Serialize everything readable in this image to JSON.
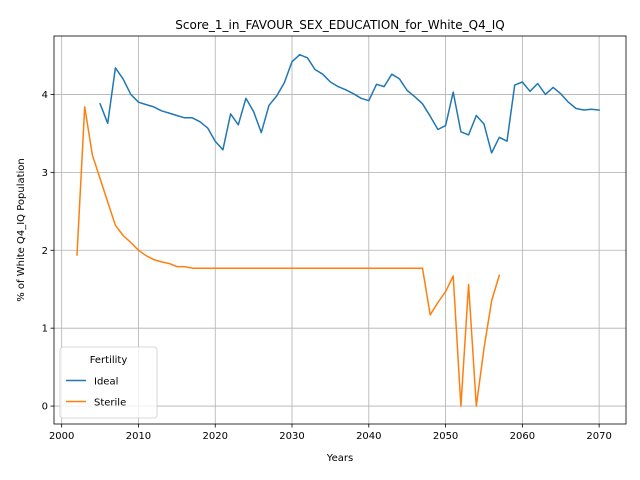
{
  "chart_data": {
    "type": "line",
    "title": "Score_1_in_FAVOUR_SEX_EDUCATION_for_White_Q4_IQ",
    "xlabel": "Years",
    "ylabel": "% of White Q4_IQ Population",
    "xlim": [
      1999,
      2073.5
    ],
    "ylim": [
      -0.23,
      4.75
    ],
    "xticks": [
      2000,
      2010,
      2020,
      2030,
      2040,
      2050,
      2060,
      2070
    ],
    "yticks": [
      0,
      1,
      2,
      3,
      4
    ],
    "grid": true,
    "legend": {
      "title": "Fertility",
      "position": "lower-left"
    },
    "series": [
      {
        "name": "Ideal",
        "color": "#1f77b4",
        "x": [
          2005,
          2006,
          2007,
          2008,
          2009,
          2010,
          2011,
          2012,
          2013,
          2014,
          2015,
          2016,
          2017,
          2018,
          2019,
          2020,
          2021,
          2022,
          2023,
          2024,
          2025,
          2026,
          2027,
          2028,
          2029,
          2030,
          2031,
          2032,
          2033,
          2034,
          2035,
          2036,
          2037,
          2038,
          2039,
          2040,
          2041,
          2042,
          2043,
          2044,
          2045,
          2046,
          2047,
          2048,
          2049,
          2050,
          2051,
          2052,
          2053,
          2054,
          2055,
          2056,
          2057,
          2058,
          2059,
          2060,
          2061,
          2062,
          2063,
          2064,
          2065,
          2066,
          2067,
          2068,
          2069,
          2070
        ],
        "y": [
          3.88,
          3.63,
          4.34,
          4.2,
          4.0,
          3.9,
          3.87,
          3.84,
          3.79,
          3.76,
          3.73,
          3.7,
          3.7,
          3.65,
          3.57,
          3.4,
          3.29,
          3.75,
          3.61,
          3.95,
          3.78,
          3.51,
          3.86,
          3.98,
          4.15,
          4.42,
          4.51,
          4.47,
          4.32,
          4.26,
          4.16,
          4.1,
          4.06,
          4.01,
          3.95,
          3.92,
          4.13,
          4.1,
          4.26,
          4.2,
          4.05,
          3.97,
          3.88,
          3.72,
          3.55,
          3.6,
          4.03,
          3.52,
          3.48,
          3.73,
          3.62,
          3.25,
          3.45,
          3.4,
          4.12,
          4.16,
          4.04,
          4.14,
          4.0,
          4.09,
          4.01,
          3.9,
          3.82,
          3.8,
          3.81,
          3.8
        ]
      },
      {
        "name": "Sterile",
        "color": "#ff7f0e",
        "x": [
          2002,
          2003,
          2004,
          2005,
          2006,
          2007,
          2008,
          2009,
          2010,
          2011,
          2012,
          2013,
          2014,
          2015,
          2016,
          2017,
          2018,
          2019,
          2020,
          2025,
          2030,
          2035,
          2040,
          2045,
          2047,
          2048,
          2049,
          2050,
          2051,
          2052,
          2053,
          2054,
          2055,
          2056,
          2057
        ],
        "y": [
          1.94,
          3.84,
          3.22,
          2.92,
          2.62,
          2.32,
          2.19,
          2.1,
          2.0,
          1.93,
          1.88,
          1.85,
          1.83,
          1.79,
          1.79,
          1.77,
          1.77,
          1.77,
          1.77,
          1.77,
          1.77,
          1.77,
          1.77,
          1.77,
          1.77,
          1.17,
          1.33,
          1.47,
          1.67,
          0.0,
          1.56,
          0.0,
          0.74,
          1.35,
          1.68
        ]
      }
    ]
  }
}
